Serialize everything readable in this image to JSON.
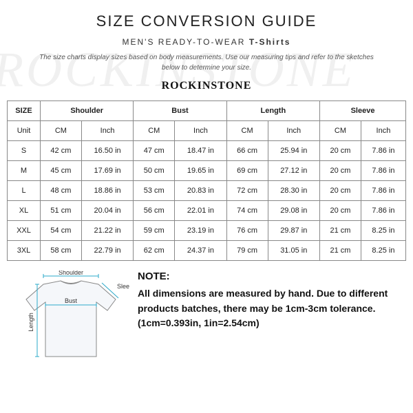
{
  "watermark": "ROCKINSTONE",
  "header": {
    "title": "SIZE CONVERSION GUIDE",
    "subtitle_prefix": "MEN'S READY-TO-WEAR ",
    "subtitle_bold": "T-Shirts",
    "intro": "The size charts display sizes based on body measurements. Use our measuring tips and refer to the sketches below to determine your size.",
    "brand": "ROCKINSTONE"
  },
  "table": {
    "group_headers": [
      "SIZE",
      "Shoulder",
      "Bust",
      "Length",
      "Sleeve"
    ],
    "unit_row_label": "Unit",
    "unit_labels": [
      "CM",
      "Inch",
      "CM",
      "Inch",
      "CM",
      "Inch",
      "CM",
      "Inch"
    ],
    "rows": [
      {
        "size": "S",
        "cells": [
          "42 cm",
          "16.50 in",
          "47 cm",
          "18.47 in",
          "66 cm",
          "25.94 in",
          "20 cm",
          "7.86 in"
        ]
      },
      {
        "size": "M",
        "cells": [
          "45 cm",
          "17.69 in",
          "50 cm",
          "19.65 in",
          "69 cm",
          "27.12 in",
          "20 cm",
          "7.86 in"
        ]
      },
      {
        "size": "L",
        "cells": [
          "48 cm",
          "18.86 in",
          "53 cm",
          "20.83 in",
          "72 cm",
          "28.30 in",
          "20 cm",
          "7.86 in"
        ]
      },
      {
        "size": "XL",
        "cells": [
          "51 cm",
          "20.04 in",
          "56 cm",
          "22.01 in",
          "74 cm",
          "29.08 in",
          "20 cm",
          "7.86 in"
        ]
      },
      {
        "size": "XXL",
        "cells": [
          "54 cm",
          "21.22 in",
          "59 cm",
          "23.19 in",
          "76 cm",
          "29.87 in",
          "21 cm",
          "8.25 in"
        ]
      },
      {
        "size": "3XL",
        "cells": [
          "58 cm",
          "22.79 in",
          "62 cm",
          "24.37 in",
          "79 cm",
          "31.05 in",
          "21 cm",
          "8.25 in"
        ]
      }
    ]
  },
  "diagram": {
    "labels": {
      "shoulder": "Shoulder",
      "bust": "Bust",
      "length": "Length",
      "sleeve": "Sleeve"
    },
    "colors": {
      "shirt_fill": "#f5f7fa",
      "shirt_stroke": "#888",
      "measure_line": "#2aa8c9",
      "label_color": "#333"
    }
  },
  "note": {
    "title": "NOTE:",
    "body": "All dimensions are measured by hand. Due to different products batches, there may be 1cm-3cm tolerance. (1cm=0.393in, 1in=2.54cm)"
  }
}
